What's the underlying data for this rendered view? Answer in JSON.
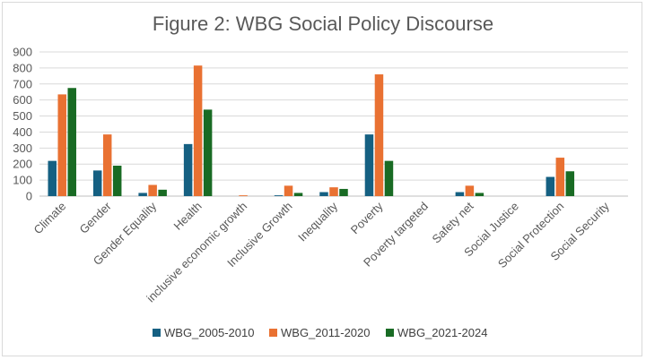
{
  "chart_data": {
    "type": "bar",
    "title": "Figure 2: WBG Social Policy Discourse",
    "xlabel": "",
    "ylabel": "",
    "ylim": [
      0,
      900
    ],
    "yticks": [
      0,
      100,
      200,
      300,
      400,
      500,
      600,
      700,
      800,
      900
    ],
    "grid": true,
    "legend_position": "bottom",
    "categories": [
      "Climate",
      "Gender",
      "Gender Equality",
      "Health",
      "inclusive economic growth",
      "Inclusive Growth",
      "Inequality",
      "Poverty",
      "Poverty targeted",
      "Safety net",
      "Social Justice",
      "Social Protection",
      "Social Security"
    ],
    "series": [
      {
        "name": "WBG_2005-2010",
        "color": "#156082",
        "values": [
          220,
          160,
          20,
          325,
          0,
          5,
          25,
          385,
          0,
          25,
          0,
          120,
          0
        ]
      },
      {
        "name": "WBG_2011-2020",
        "color": "#E97132",
        "values": [
          635,
          385,
          70,
          815,
          5,
          65,
          55,
          760,
          0,
          65,
          0,
          240,
          0
        ]
      },
      {
        "name": "WBG_2021-2024",
        "color": "#196B24",
        "values": [
          675,
          190,
          40,
          540,
          0,
          20,
          45,
          220,
          0,
          20,
          0,
          155,
          0
        ]
      }
    ]
  }
}
